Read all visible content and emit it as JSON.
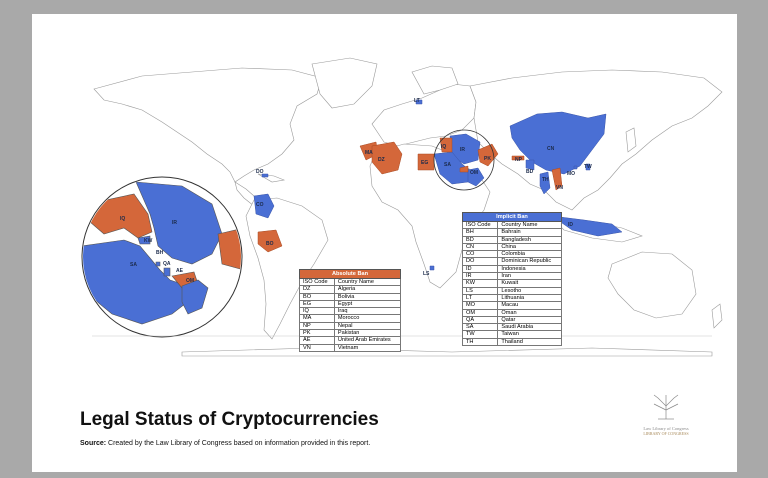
{
  "title": "Legal Status of Cryptocurrencies",
  "source_label": "Source:",
  "source_text": "Created by the Law Library of Congress based on information provided in this report.",
  "colors": {
    "absolute_ban": "#d4673a",
    "implicit_ban": "#4a6fd4",
    "land": "#ffffff",
    "border": "#9a9a9a"
  },
  "absolute_ban_table": {
    "heading": "Absolute Ban",
    "col_code": "ISO Code",
    "col_name": "Country Name",
    "rows": [
      {
        "code": "DZ",
        "name": "Algeria"
      },
      {
        "code": "BO",
        "name": "Bolivia"
      },
      {
        "code": "EG",
        "name": "Egypt"
      },
      {
        "code": "IQ",
        "name": "Iraq"
      },
      {
        "code": "MA",
        "name": "Morocco"
      },
      {
        "code": "NP",
        "name": "Nepal"
      },
      {
        "code": "PK",
        "name": "Pakistan"
      },
      {
        "code": "AE",
        "name": "United Arab Emirates"
      },
      {
        "code": "VN",
        "name": "Vietnam"
      }
    ]
  },
  "implicit_ban_table": {
    "heading": "Implicit Ban",
    "col_code": "ISO Code",
    "col_name": "Country Name",
    "rows": [
      {
        "code": "BH",
        "name": "Bahrain"
      },
      {
        "code": "BD",
        "name": "Bangladesh"
      },
      {
        "code": "CN",
        "name": "China"
      },
      {
        "code": "CO",
        "name": "Colombia"
      },
      {
        "code": "DO",
        "name": "Dominican Republic"
      },
      {
        "code": "ID",
        "name": "Indonesia"
      },
      {
        "code": "IR",
        "name": "Iran"
      },
      {
        "code": "KW",
        "name": "Kuwait"
      },
      {
        "code": "LS",
        "name": "Lesotho"
      },
      {
        "code": "LT",
        "name": "Lithuania"
      },
      {
        "code": "MO",
        "name": "Macau"
      },
      {
        "code": "OM",
        "name": "Oman"
      },
      {
        "code": "QA",
        "name": "Qatar"
      },
      {
        "code": "SA",
        "name": "Saudi Arabia"
      },
      {
        "code": "TW",
        "name": "Taiwan"
      },
      {
        "code": "TH",
        "name": "Thailand"
      }
    ]
  },
  "map_labels": {
    "LT": "LT",
    "MA": "MA",
    "DZ": "DZ",
    "EG": "EG",
    "IQ": "IQ",
    "IR": "IR",
    "SA": "SA",
    "OM": "OM",
    "PK": "PK",
    "NP": "NP",
    "CN": "CN",
    "BD": "BD",
    "MO": "MO",
    "TW": "TW",
    "TH": "TH",
    "VN": "VN",
    "ID": "ID",
    "DO": "DO",
    "CO": "CO",
    "BO": "BO",
    "LS": "LS"
  },
  "inset_labels": {
    "IQ": "IQ",
    "IR": "IR",
    "KW": "KW",
    "BH": "BH",
    "QA": "QA",
    "SA": "SA",
    "AE": "AE",
    "OM": "OM"
  },
  "logo": {
    "line1": "Law Library of Congress",
    "line2": "LIBRARY OF CONGRESS"
  }
}
